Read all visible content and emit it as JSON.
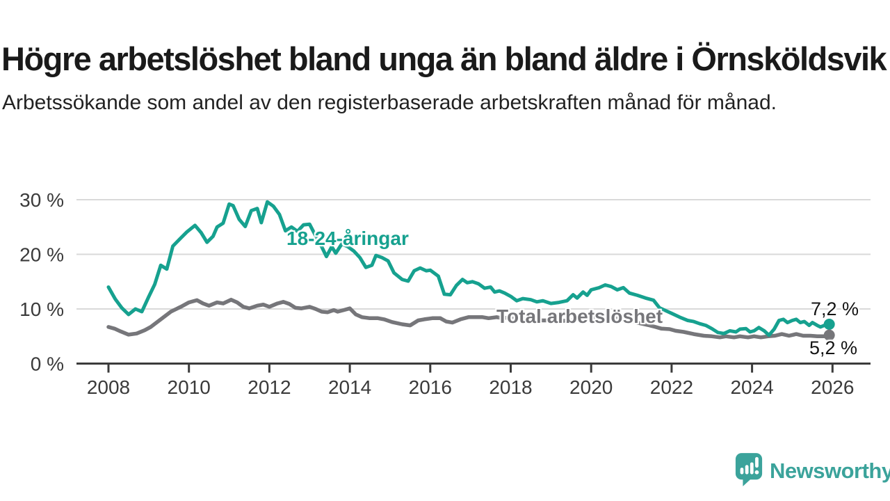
{
  "header": {
    "title": "Högre arbetslöshet bland unga än bland äldre i Örnsköldsvik",
    "subtitle": "Arbetssökande som andel av den registerbaserade arbetskraften månad för månad."
  },
  "branding": {
    "logo_text": "Newsworthy",
    "logo_color": "#3BA39B",
    "logo_icon": "newsworthy-speech-bubble-bar-chart-icon"
  },
  "colors": {
    "youth_line": "#16A18F",
    "total_line": "#76767A",
    "axis": "#3B3B3B",
    "gridline": "#D9D9D9",
    "tick_text": "#3A3A3A"
  },
  "chart_data": {
    "type": "line",
    "unit": "%",
    "grid": "horizontal",
    "x_axis": {
      "ticks": [
        2008,
        2010,
        2012,
        2014,
        2016,
        2018,
        2020,
        2022,
        2024,
        2026
      ]
    },
    "y_axis": {
      "range": [
        0,
        32
      ],
      "ticks": [
        0,
        10,
        20,
        30
      ],
      "tick_labels": [
        "0 %",
        "10 %",
        "20 %",
        "30 %"
      ]
    },
    "series": [
      {
        "name": "18-24-åringar",
        "color": "#16A18F",
        "end_label": "7,2 %",
        "end_value": 7.2,
        "points": [
          [
            2008.0,
            14.0
          ],
          [
            2008.17,
            11.8
          ],
          [
            2008.33,
            10.2
          ],
          [
            2008.5,
            9.0
          ],
          [
            2008.67,
            10.0
          ],
          [
            2008.83,
            9.5
          ],
          [
            2009.0,
            12.2
          ],
          [
            2009.15,
            14.5
          ],
          [
            2009.3,
            18.0
          ],
          [
            2009.45,
            17.3
          ],
          [
            2009.6,
            21.5
          ],
          [
            2009.8,
            23.0
          ],
          [
            2009.95,
            24.1
          ],
          [
            2010.15,
            25.3
          ],
          [
            2010.3,
            24.0
          ],
          [
            2010.45,
            22.2
          ],
          [
            2010.6,
            23.3
          ],
          [
            2010.7,
            25.0
          ],
          [
            2010.85,
            25.7
          ],
          [
            2011.0,
            29.2
          ],
          [
            2011.1,
            28.9
          ],
          [
            2011.25,
            26.4
          ],
          [
            2011.4,
            25.1
          ],
          [
            2011.55,
            28.0
          ],
          [
            2011.7,
            28.4
          ],
          [
            2011.8,
            25.8
          ],
          [
            2011.95,
            29.6
          ],
          [
            2012.1,
            28.8
          ],
          [
            2012.25,
            27.3
          ],
          [
            2012.4,
            24.3
          ],
          [
            2012.55,
            25.0
          ],
          [
            2012.7,
            24.2
          ],
          [
            2012.85,
            25.4
          ],
          [
            2013.0,
            25.5
          ],
          [
            2013.15,
            23.4
          ],
          [
            2013.3,
            21.4
          ],
          [
            2013.42,
            19.6
          ],
          [
            2013.55,
            21.4
          ],
          [
            2013.65,
            20.2
          ],
          [
            2013.8,
            21.9
          ],
          [
            2013.95,
            21.4
          ],
          [
            2014.1,
            20.6
          ],
          [
            2014.25,
            19.4
          ],
          [
            2014.4,
            17.6
          ],
          [
            2014.55,
            18.0
          ],
          [
            2014.65,
            19.8
          ],
          [
            2014.8,
            19.4
          ],
          [
            2014.95,
            18.8
          ],
          [
            2015.1,
            16.6
          ],
          [
            2015.3,
            15.4
          ],
          [
            2015.45,
            15.1
          ],
          [
            2015.6,
            17.0
          ],
          [
            2015.75,
            17.5
          ],
          [
            2015.9,
            17.0
          ],
          [
            2016.0,
            17.1
          ],
          [
            2016.2,
            16.0
          ],
          [
            2016.35,
            12.7
          ],
          [
            2016.5,
            12.6
          ],
          [
            2016.65,
            14.3
          ],
          [
            2016.8,
            15.4
          ],
          [
            2016.92,
            14.8
          ],
          [
            2017.05,
            15.0
          ],
          [
            2017.2,
            14.6
          ],
          [
            2017.35,
            13.8
          ],
          [
            2017.5,
            14.0
          ],
          [
            2017.6,
            13.1
          ],
          [
            2017.72,
            13.3
          ],
          [
            2017.85,
            12.9
          ],
          [
            2018.0,
            12.3
          ],
          [
            2018.15,
            11.5
          ],
          [
            2018.3,
            11.9
          ],
          [
            2018.5,
            11.7
          ],
          [
            2018.65,
            11.3
          ],
          [
            2018.8,
            11.5
          ],
          [
            2019.0,
            11.0
          ],
          [
            2019.2,
            11.2
          ],
          [
            2019.4,
            11.5
          ],
          [
            2019.55,
            12.6
          ],
          [
            2019.65,
            12.0
          ],
          [
            2019.8,
            13.1
          ],
          [
            2019.9,
            12.5
          ],
          [
            2020.0,
            13.5
          ],
          [
            2020.2,
            13.9
          ],
          [
            2020.35,
            14.4
          ],
          [
            2020.5,
            14.1
          ],
          [
            2020.65,
            13.5
          ],
          [
            2020.8,
            13.9
          ],
          [
            2020.95,
            12.9
          ],
          [
            2021.15,
            12.5
          ],
          [
            2021.35,
            12.0
          ],
          [
            2021.55,
            11.6
          ],
          [
            2021.7,
            10.2
          ],
          [
            2021.85,
            9.7
          ],
          [
            2022.0,
            9.2
          ],
          [
            2022.2,
            8.5
          ],
          [
            2022.4,
            7.9
          ],
          [
            2022.55,
            7.7
          ],
          [
            2022.7,
            7.3
          ],
          [
            2022.85,
            7.0
          ],
          [
            2023.0,
            6.4
          ],
          [
            2023.15,
            5.7
          ],
          [
            2023.3,
            5.5
          ],
          [
            2023.45,
            6.0
          ],
          [
            2023.6,
            5.8
          ],
          [
            2023.7,
            6.3
          ],
          [
            2023.85,
            6.4
          ],
          [
            2023.95,
            5.8
          ],
          [
            2024.05,
            6.0
          ],
          [
            2024.17,
            6.6
          ],
          [
            2024.3,
            6.0
          ],
          [
            2024.42,
            5.2
          ],
          [
            2024.55,
            6.3
          ],
          [
            2024.67,
            7.9
          ],
          [
            2024.78,
            8.1
          ],
          [
            2024.88,
            7.5
          ],
          [
            2025.0,
            7.9
          ],
          [
            2025.1,
            8.1
          ],
          [
            2025.2,
            7.5
          ],
          [
            2025.3,
            7.7
          ],
          [
            2025.42,
            7.0
          ],
          [
            2025.5,
            7.5
          ],
          [
            2025.62,
            7.0
          ],
          [
            2025.7,
            6.7
          ],
          [
            2025.8,
            7.0
          ],
          [
            2025.92,
            7.2
          ]
        ]
      },
      {
        "name": "Total arbetslöshet",
        "color": "#76767A",
        "end_label": "5,2 %",
        "end_value": 5.2,
        "points": [
          [
            2008.0,
            6.7
          ],
          [
            2008.15,
            6.4
          ],
          [
            2008.3,
            5.9
          ],
          [
            2008.5,
            5.3
          ],
          [
            2008.7,
            5.5
          ],
          [
            2008.9,
            6.1
          ],
          [
            2009.05,
            6.7
          ],
          [
            2009.3,
            8.1
          ],
          [
            2009.55,
            9.5
          ],
          [
            2009.8,
            10.4
          ],
          [
            2010.0,
            11.2
          ],
          [
            2010.2,
            11.6
          ],
          [
            2010.35,
            11.0
          ],
          [
            2010.5,
            10.6
          ],
          [
            2010.7,
            11.2
          ],
          [
            2010.85,
            11.0
          ],
          [
            2011.05,
            11.7
          ],
          [
            2011.2,
            11.2
          ],
          [
            2011.35,
            10.4
          ],
          [
            2011.5,
            10.1
          ],
          [
            2011.7,
            10.6
          ],
          [
            2011.85,
            10.8
          ],
          [
            2012.0,
            10.4
          ],
          [
            2012.2,
            11.0
          ],
          [
            2012.35,
            11.3
          ],
          [
            2012.5,
            10.9
          ],
          [
            2012.65,
            10.2
          ],
          [
            2012.8,
            10.1
          ],
          [
            2013.0,
            10.4
          ],
          [
            2013.15,
            10.0
          ],
          [
            2013.3,
            9.5
          ],
          [
            2013.45,
            9.4
          ],
          [
            2013.6,
            9.8
          ],
          [
            2013.7,
            9.5
          ],
          [
            2013.85,
            9.8
          ],
          [
            2014.0,
            10.1
          ],
          [
            2014.15,
            9.0
          ],
          [
            2014.3,
            8.5
          ],
          [
            2014.5,
            8.3
          ],
          [
            2014.7,
            8.3
          ],
          [
            2014.85,
            8.1
          ],
          [
            2015.05,
            7.6
          ],
          [
            2015.3,
            7.2
          ],
          [
            2015.5,
            7.0
          ],
          [
            2015.7,
            7.9
          ],
          [
            2015.85,
            8.1
          ],
          [
            2016.05,
            8.3
          ],
          [
            2016.25,
            8.3
          ],
          [
            2016.4,
            7.7
          ],
          [
            2016.55,
            7.5
          ],
          [
            2016.75,
            8.1
          ],
          [
            2016.95,
            8.5
          ],
          [
            2017.1,
            8.5
          ],
          [
            2017.3,
            8.5
          ],
          [
            2017.45,
            8.3
          ],
          [
            2017.65,
            8.5
          ],
          [
            2017.8,
            8.3
          ],
          [
            2018.0,
            8.5
          ],
          [
            2018.2,
            8.3
          ],
          [
            2018.4,
            8.1
          ],
          [
            2018.6,
            8.0
          ],
          [
            2018.8,
            7.9
          ],
          [
            2019.0,
            7.9
          ],
          [
            2019.25,
            7.8
          ],
          [
            2019.5,
            7.9
          ],
          [
            2019.75,
            8.0
          ],
          [
            2020.0,
            8.2
          ],
          [
            2020.25,
            8.6
          ],
          [
            2020.5,
            8.5
          ],
          [
            2020.75,
            8.2
          ],
          [
            2021.0,
            7.8
          ],
          [
            2021.2,
            7.4
          ],
          [
            2021.45,
            7.0
          ],
          [
            2021.6,
            6.7
          ],
          [
            2021.75,
            6.4
          ],
          [
            2021.95,
            6.3
          ],
          [
            2022.1,
            6.0
          ],
          [
            2022.3,
            5.8
          ],
          [
            2022.55,
            5.4
          ],
          [
            2022.8,
            5.1
          ],
          [
            2023.0,
            5.0
          ],
          [
            2023.2,
            4.8
          ],
          [
            2023.35,
            5.0
          ],
          [
            2023.55,
            4.8
          ],
          [
            2023.7,
            5.0
          ],
          [
            2023.9,
            4.8
          ],
          [
            2024.05,
            5.0
          ],
          [
            2024.22,
            4.8
          ],
          [
            2024.4,
            5.0
          ],
          [
            2024.57,
            5.1
          ],
          [
            2024.74,
            5.4
          ],
          [
            2024.92,
            5.1
          ],
          [
            2025.1,
            5.4
          ],
          [
            2025.27,
            5.1
          ],
          [
            2025.45,
            5.1
          ],
          [
            2025.62,
            5.0
          ],
          [
            2025.8,
            5.0
          ],
          [
            2025.92,
            5.2
          ]
        ]
      }
    ]
  }
}
